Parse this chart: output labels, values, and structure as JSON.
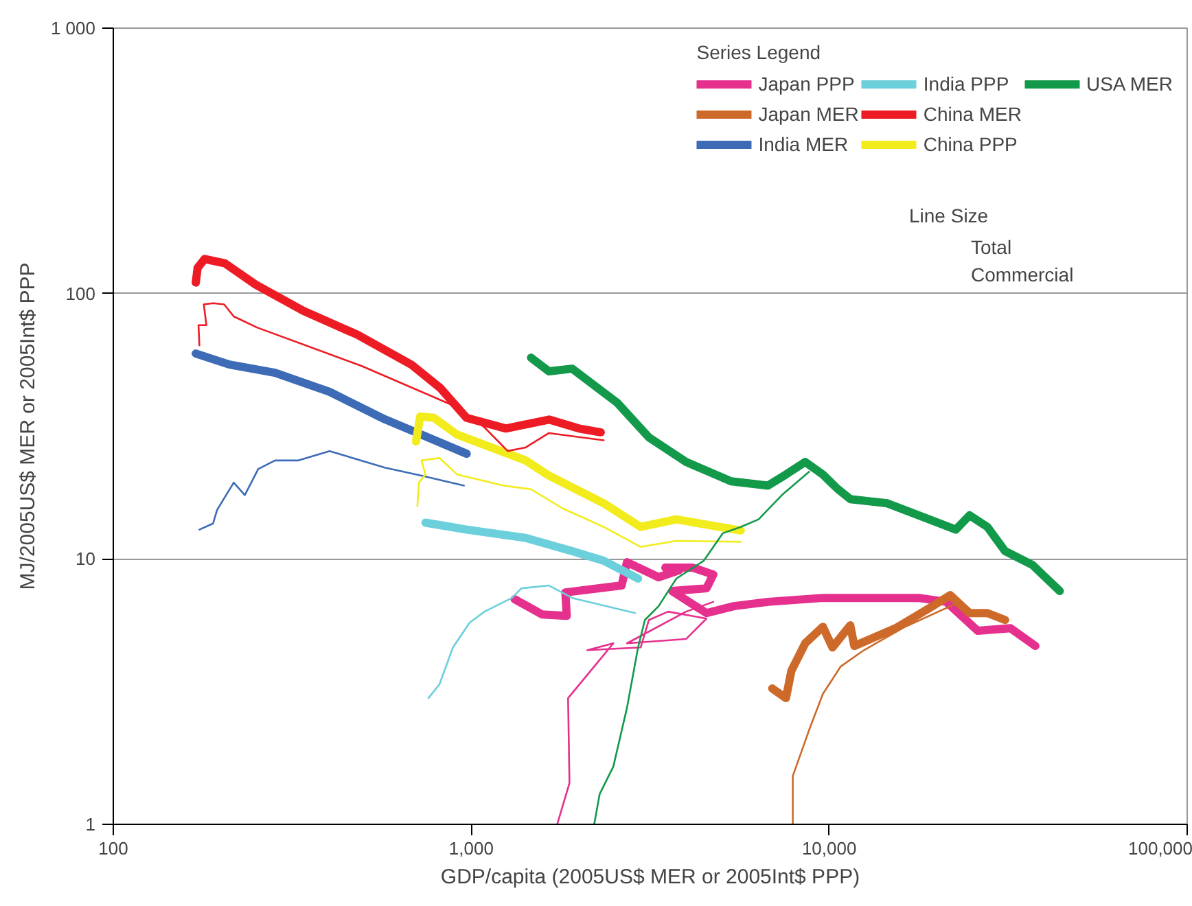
{
  "chart_data": {
    "type": "line",
    "xlabel": "GDP/capita (2005US$ MER or 2005Int$ PPP)",
    "ylabel": "MJ/2005US$ MER or 2005Int$ PPP",
    "log": "xy",
    "grid": "y",
    "legend": "top right",
    "legend_title": "Series Legend",
    "annotations": [
      "Line Size",
      "Total",
      "Commercial"
    ],
    "xlim": [
      100,
      100000
    ],
    "xticks": [
      100,
      {
        "value": 1000,
        "label": "1,000"
      },
      {
        "value": 10000,
        "label": "10,000"
      },
      {
        "value": 100000,
        "label": "100,000"
      }
    ],
    "ylim": [
      1,
      1000
    ],
    "yticks": [
      1,
      10,
      100,
      {
        "value": 1000,
        "label": "1 000"
      }
    ],
    "series": [
      {
        "name": "Japan PPP",
        "color": "#e5308e",
        "x": [
          1322,
          1577,
          1848,
          1832,
          2630,
          2723,
          3337,
          3808,
          3486,
          4158,
          4744,
          4540,
          3640,
          4540,
          5416,
          6745,
          9600,
          17800,
          21230,
          26000,
          32100,
          37660
        ],
        "values": [
          7.05,
          6.18,
          6.1,
          7.48,
          7.94,
          9.72,
          8.53,
          9.06,
          9.27,
          9.27,
          8.73,
          7.75,
          7.57,
          6.25,
          6.64,
          6.89,
          7.13,
          7.13,
          6.89,
          5.36,
          5.48,
          4.7
        ]
      },
      {
        "name": "Japan MER",
        "color": "#cd6a2a",
        "x": [
          6930,
          7570,
          7840,
          8570,
          9600,
          10210,
          11450,
          11750,
          15320,
          18920,
          21780,
          24660,
          27660,
          30990
        ],
        "values": [
          3.25,
          2.99,
          3.79,
          4.81,
          5.55,
          4.64,
          5.62,
          4.7,
          5.48,
          6.49,
          7.3,
          6.25,
          6.25,
          5.89
        ]
      },
      {
        "name": "India MER",
        "color": "#3d6bb5",
        "x": [
          170,
          211,
          283,
          402,
          573,
          726,
          971
        ],
        "values": [
          59.4,
          54,
          50.3,
          42.6,
          33.6,
          29.4,
          24.9
        ]
      },
      {
        "name": "India PPP",
        "color": "#6ccfdc",
        "x": [
          745,
          971,
          1419,
          1915,
          2345,
          2924
        ],
        "values": [
          13.7,
          12.9,
          12.0,
          10.7,
          9.84,
          8.43
        ]
      },
      {
        "name": "China MER",
        "color": "#ed1c24",
        "x": [
          170,
          172,
          180,
          205,
          250,
          340,
          480,
          680,
          820,
          970,
          1250,
          1650,
          2000,
          2300
        ],
        "values": [
          110,
          125,
          135,
          130,
          108,
          86,
          70,
          54,
          44,
          34,
          31,
          33.5,
          31,
          30
        ]
      },
      {
        "name": "China PPP",
        "color": "#f2ec1d",
        "x": [
          701,
          720,
          787,
          913,
          1419,
          1648,
          2345,
          2973,
          3740,
          4624,
          5660
        ],
        "values": [
          27.7,
          34.4,
          34,
          29.4,
          23.5,
          20.6,
          16.2,
          13.2,
          14.1,
          13.4,
          12.8
        ]
      },
      {
        "name": "USA MER",
        "color": "#13994a",
        "x": [
          1469,
          1648,
          1915,
          2560,
          3135,
          3981,
          5320,
          6745,
          7570,
          8570,
          9600,
          10490,
          11450,
          14530,
          22580,
          24660,
          27660,
          30990,
          36970,
          44060
        ],
        "values": [
          57.3,
          50.9,
          52.1,
          38.7,
          28.7,
          23.2,
          19.6,
          18.9,
          20.8,
          23.2,
          20.8,
          18.5,
          16.8,
          16.2,
          12.9,
          14.6,
          13.2,
          10.7,
          9.49,
          7.57
        ]
      },
      {
        "color": "#e5308e",
        "x": [
          1738,
          1881,
          1864,
          2205,
          2494,
          2110,
          2973,
          3135,
          3548,
          4540,
          3981,
          2723,
          3981,
          4744
        ],
        "values": [
          1.0,
          1.43,
          2.99,
          3.93,
          4.81,
          4.53,
          4.64,
          5.89,
          6.33,
          5.96,
          4.99,
          4.81,
          6.33,
          6.89
        ]
      },
      {
        "color": "#cd6a2a",
        "x": [
          7910,
          7910,
          8790,
          9600,
          10760,
          12500,
          16290,
          23170
        ],
        "values": [
          1.0,
          1.52,
          2.27,
          3.1,
          3.93,
          4.53,
          5.55,
          6.89
        ]
      },
      {
        "color": "#3d6bb5",
        "x": [
          174,
          190,
          195,
          217,
          233,
          254,
          283,
          329,
          402,
          573,
          726,
          954
        ],
        "values": [
          12.9,
          13.6,
          15.3,
          19.4,
          17.4,
          21.8,
          23.5,
          23.5,
          25.5,
          22.1,
          20.6,
          18.9
        ]
      },
      {
        "color": "#6ccfdc",
        "x": [
          759,
          815,
          889,
          989,
          1089,
          1299,
          1381,
          1648,
          1915,
          2871
        ],
        "values": [
          2.99,
          3.37,
          4.64,
          5.75,
          6.33,
          7.13,
          7.75,
          7.94,
          7.13,
          6.25
        ]
      },
      {
        "color": "#ed1c24",
        "x": [
          174,
          173,
          182,
          179,
          190,
          204,
          217,
          252,
          493,
          913,
          1089,
          1264,
          1419,
          1648,
          2345
        ],
        "values": [
          63.8,
          76,
          76,
          91,
          92,
          91,
          82,
          74.5,
          53.4,
          37.3,
          31.3,
          25.5,
          26.3,
          29.8,
          28
        ]
      },
      {
        "color": "#f2ec1d",
        "x": [
          707,
          714,
          745,
          726,
          815,
          913,
          1232,
          1469,
          1800,
          2345,
          2973,
          3740,
          5660
        ],
        "values": [
          15.8,
          19.4,
          20.8,
          23.5,
          24.0,
          20.8,
          18.9,
          18.3,
          15.5,
          13.2,
          11.1,
          11.7,
          11.6
        ]
      },
      {
        "color": "#13994a",
        "x": [
          2205,
          2284,
          2494,
          2723,
          2924,
          3055,
          3337,
          3740,
          4460,
          5046,
          5660,
          6350,
          7375,
          8790
        ],
        "values": [
          1.0,
          1.3,
          1.65,
          2.75,
          4.64,
          5.89,
          6.64,
          8.43,
          9.84,
          12.5,
          13.2,
          14.1,
          17.4,
          21.3
        ]
      }
    ]
  }
}
